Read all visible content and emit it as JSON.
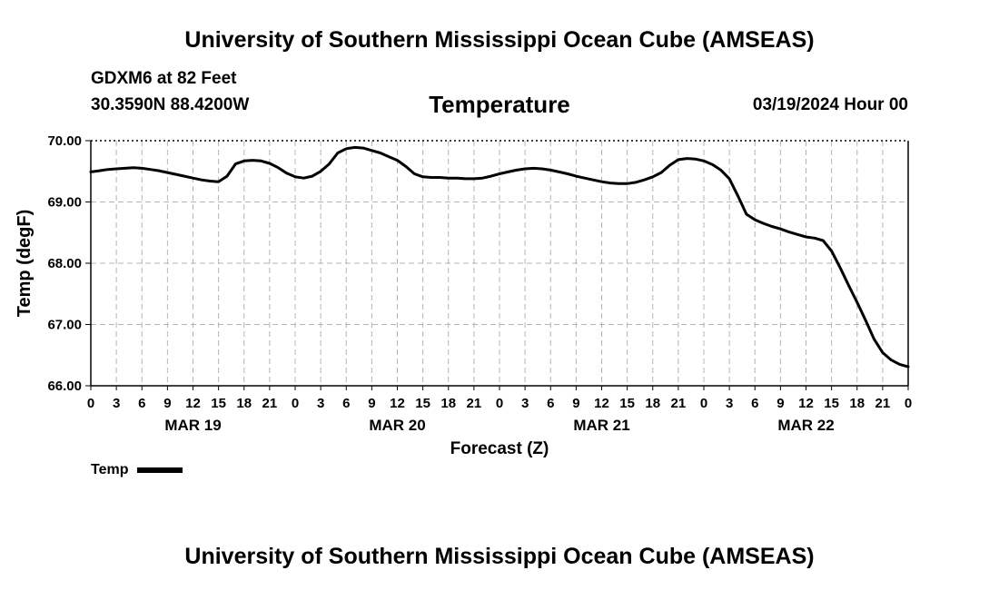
{
  "header": {
    "title": "University of Southern Mississippi Ocean Cube (AMSEAS)",
    "station": "GDXM6 at 82 Feet",
    "coordinates": "30.3590N  88.4200W",
    "datetime": "03/19/2024 Hour 00"
  },
  "footer": {
    "title": "University of Southern Mississippi Ocean Cube (AMSEAS)"
  },
  "chart_data": {
    "type": "line",
    "title": "Temperature",
    "xlabel": "Forecast (Z)",
    "ylabel": "Temp (degF)",
    "ylim": [
      66.0,
      70.0
    ],
    "xlim": [
      0,
      96
    ],
    "y_ticks": [
      "66.00",
      "67.00",
      "68.00",
      "69.00",
      "70.00"
    ],
    "x_tick_values": [
      0,
      3,
      6,
      9,
      12,
      15,
      18,
      21,
      24,
      27,
      30,
      33,
      36,
      39,
      42,
      45,
      48,
      51,
      54,
      57,
      60,
      63,
      66,
      69,
      72,
      75,
      78,
      81,
      84,
      87,
      90,
      93,
      96
    ],
    "x_tick_labels": [
      "0",
      "3",
      "6",
      "9",
      "12",
      "15",
      "18",
      "21",
      "0",
      "3",
      "6",
      "9",
      "12",
      "15",
      "18",
      "21",
      "0",
      "3",
      "6",
      "9",
      "12",
      "15",
      "18",
      "21",
      "0",
      "3",
      "6",
      "9",
      "12",
      "15",
      "18",
      "21",
      "0"
    ],
    "day_labels": [
      {
        "label": "MAR 19",
        "x": 12
      },
      {
        "label": "MAR 20",
        "x": 36
      },
      {
        "label": "MAR 21",
        "x": 60
      },
      {
        "label": "MAR 22",
        "x": 84
      }
    ],
    "grid": true,
    "series": [
      {
        "name": "Temp",
        "color": "#000000",
        "x": [
          0,
          1,
          2,
          3,
          4,
          5,
          6,
          7,
          8,
          9,
          10,
          11,
          12,
          13,
          14,
          15,
          16,
          17,
          18,
          19,
          20,
          21,
          22,
          23,
          24,
          25,
          26,
          27,
          28,
          29,
          30,
          31,
          32,
          33,
          34,
          35,
          36,
          37,
          38,
          39,
          40,
          41,
          42,
          43,
          44,
          45,
          46,
          47,
          48,
          49,
          50,
          51,
          52,
          53,
          54,
          55,
          56,
          57,
          58,
          59,
          60,
          61,
          62,
          63,
          64,
          65,
          66,
          67,
          68,
          69,
          70,
          71,
          72,
          73,
          74,
          75,
          76,
          77,
          78,
          79,
          80,
          81,
          82,
          83,
          84,
          85,
          86,
          87,
          88,
          89,
          90,
          91,
          92,
          93,
          94,
          95,
          96
        ],
        "values": [
          69.49,
          69.51,
          69.53,
          69.54,
          69.55,
          69.56,
          69.55,
          69.53,
          69.51,
          69.48,
          69.45,
          69.42,
          69.39,
          69.36,
          69.34,
          69.33,
          69.42,
          69.62,
          69.67,
          69.68,
          69.67,
          69.63,
          69.56,
          69.47,
          69.41,
          69.39,
          69.42,
          69.5,
          69.62,
          69.8,
          69.87,
          69.89,
          69.88,
          69.84,
          69.8,
          69.74,
          69.68,
          69.58,
          69.46,
          69.41,
          69.4,
          69.4,
          69.39,
          69.39,
          69.38,
          69.38,
          69.39,
          69.42,
          69.46,
          69.49,
          69.52,
          69.54,
          69.55,
          69.54,
          69.52,
          69.49,
          69.46,
          69.42,
          69.39,
          69.36,
          69.33,
          69.31,
          69.3,
          69.3,
          69.32,
          69.36,
          69.41,
          69.48,
          69.6,
          69.69,
          69.71,
          69.7,
          69.67,
          69.61,
          69.52,
          69.38,
          69.1,
          68.8,
          68.71,
          68.65,
          68.6,
          68.56,
          68.51,
          68.47,
          68.43,
          68.41,
          68.37,
          68.2,
          67.93,
          67.64,
          67.36,
          67.07,
          66.76,
          66.54,
          66.42,
          66.35,
          66.31
        ]
      }
    ]
  }
}
